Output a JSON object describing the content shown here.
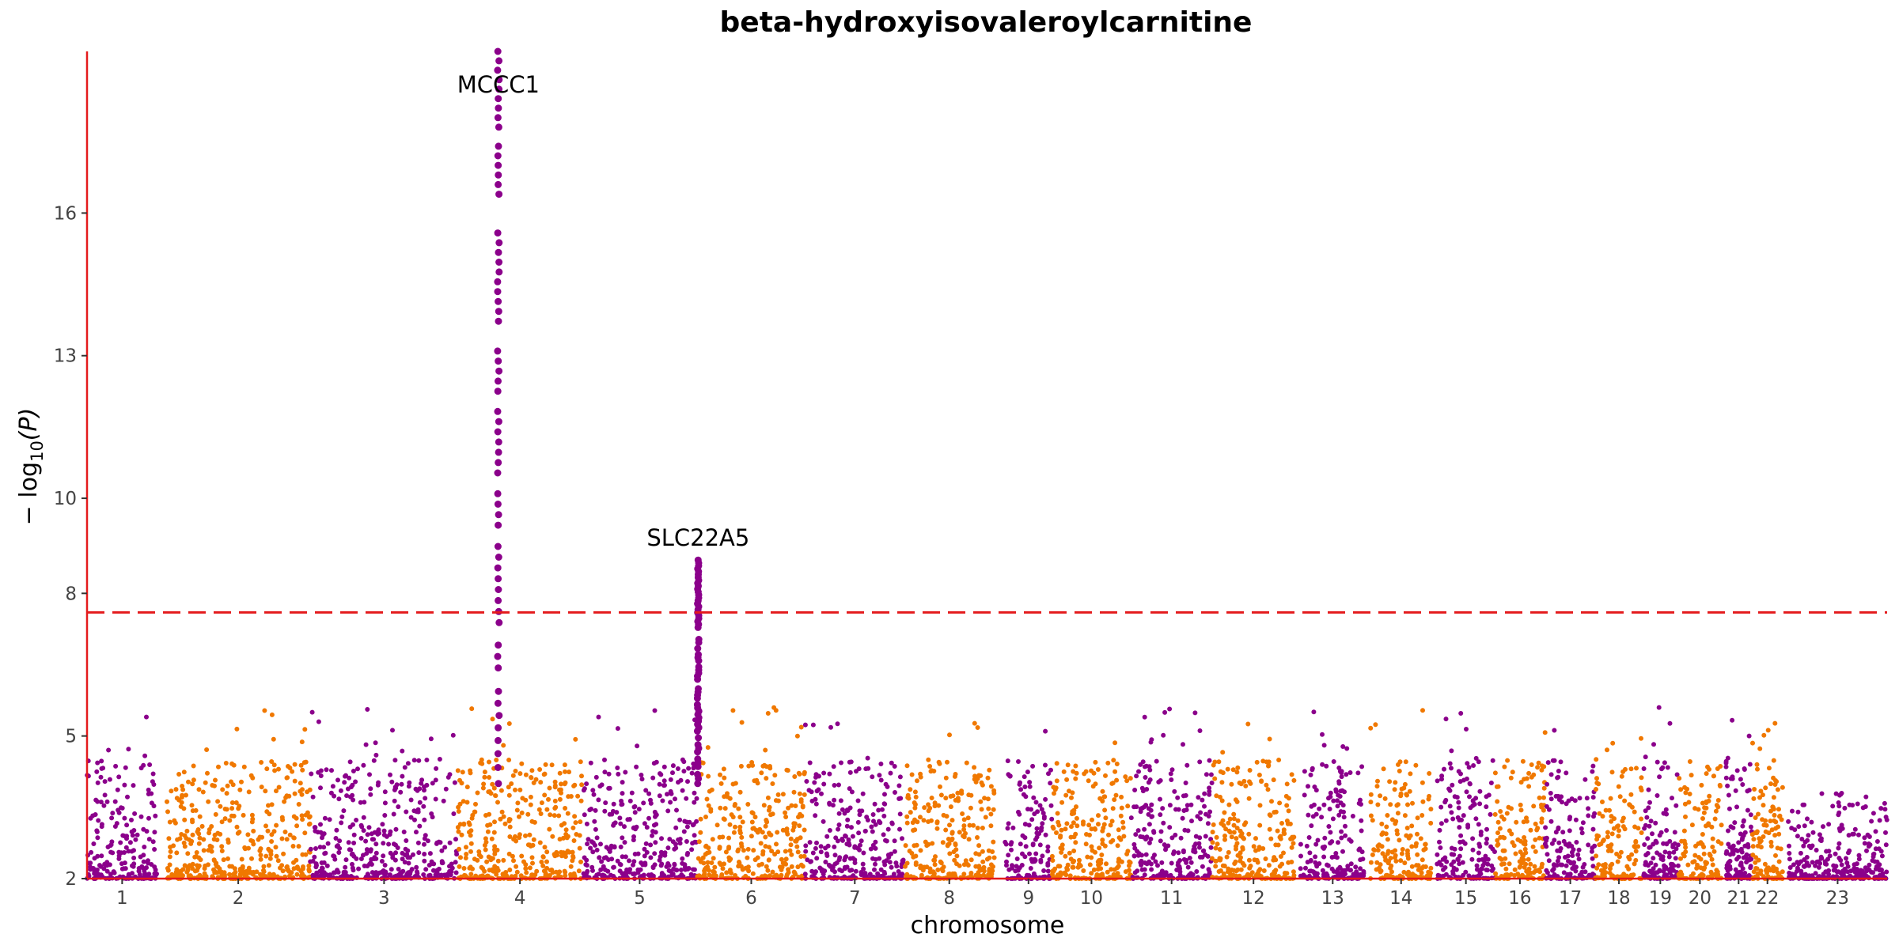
{
  "chart_data": {
    "type": "scatter",
    "title": "beta-hydroxyisovaleroylcarnitine",
    "xlabel": "chromosome",
    "ylabel_main": "− log",
    "ylabel_sub": "10",
    "ylabel_tail": "(P)",
    "ylim": [
      2,
      19.4
    ],
    "yticks": [
      2,
      5,
      8,
      10,
      13,
      16
    ],
    "threshold": 7.6,
    "grid": false,
    "colors": {
      "odd": "#8B008B",
      "even": "#F07800",
      "axis": "#E41A1C",
      "threshold": "#E41A1C"
    },
    "chromosomes": [
      {
        "label": "1",
        "start": 0.0,
        "end": 0.039
      },
      {
        "label": "2",
        "start": 0.044,
        "end": 0.124
      },
      {
        "label": "3",
        "start": 0.124,
        "end": 0.206
      },
      {
        "label": "4",
        "start": 0.206,
        "end": 0.275
      },
      {
        "label": "5",
        "start": 0.275,
        "end": 0.339
      },
      {
        "label": "6",
        "start": 0.339,
        "end": 0.399
      },
      {
        "label": "7",
        "start": 0.399,
        "end": 0.454
      },
      {
        "label": "8",
        "start": 0.454,
        "end": 0.504
      },
      {
        "label": "9",
        "start": 0.51,
        "end": 0.536
      },
      {
        "label": "10",
        "start": 0.536,
        "end": 0.58
      },
      {
        "label": "11",
        "start": 0.58,
        "end": 0.625
      },
      {
        "label": "12",
        "start": 0.625,
        "end": 0.671
      },
      {
        "label": "13",
        "start": 0.674,
        "end": 0.71
      },
      {
        "label": "14",
        "start": 0.713,
        "end": 0.747
      },
      {
        "label": "15",
        "start": 0.75,
        "end": 0.782
      },
      {
        "label": "16",
        "start": 0.782,
        "end": 0.81
      },
      {
        "label": "17",
        "start": 0.81,
        "end": 0.838
      },
      {
        "label": "18",
        "start": 0.838,
        "end": 0.864
      },
      {
        "label": "19",
        "start": 0.864,
        "end": 0.884
      },
      {
        "label": "20",
        "start": 0.884,
        "end": 0.908
      },
      {
        "label": "21",
        "start": 0.91,
        "end": 0.925
      },
      {
        "label": "22",
        "start": 0.925,
        "end": 0.942
      },
      {
        "label": "23",
        "start": 0.945,
        "end": 1.0
      }
    ],
    "peaks": [
      {
        "label": "MCCC1",
        "x": 0.2285,
        "min": 7.6,
        "max": 19.4
      },
      {
        "label": "SLC22A5",
        "x": 0.3395,
        "min": 7.6,
        "max": 8.7
      }
    ]
  }
}
